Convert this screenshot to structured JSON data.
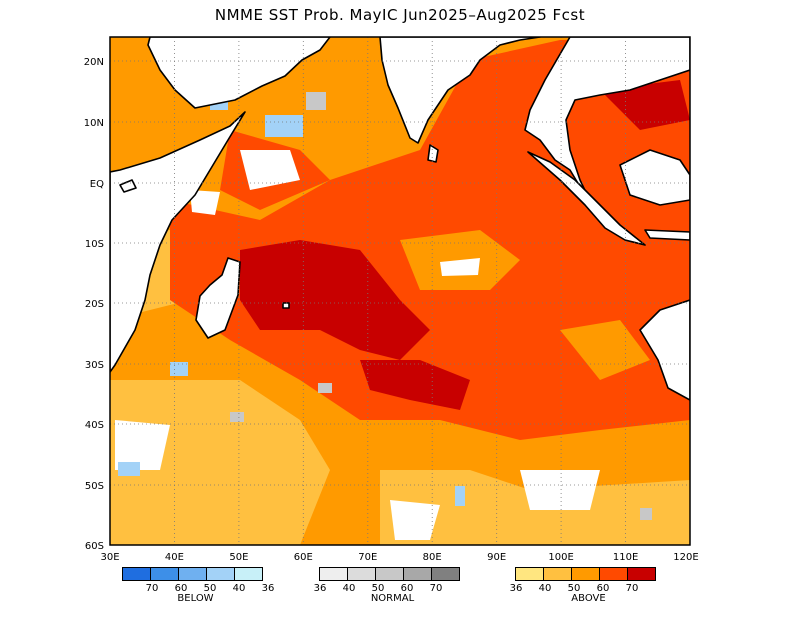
{
  "title": "NMME SST Prob. MayIC   Jun2025–Aug2025 Fcst",
  "axes": {
    "x_ticks": [
      "30E",
      "40E",
      "50E",
      "60E",
      "70E",
      "80E",
      "90E",
      "100E",
      "110E",
      "120E"
    ],
    "y_ticks": [
      "20N",
      "10N",
      "EQ",
      "10S",
      "20S",
      "30S",
      "40S",
      "50S",
      "60S"
    ],
    "xlim_deg_e": [
      30,
      120
    ],
    "ylim_deg": [
      -60,
      24
    ],
    "grid": true
  },
  "legends": [
    {
      "name": "BELOW",
      "colors": [
        "#1f6ee0",
        "#3d8fe8",
        "#6fb0f0",
        "#a3d2f7",
        "#c8f0f8"
      ],
      "ticks": [
        "70",
        "60",
        "50",
        "40",
        "36"
      ]
    },
    {
      "name": "NORMAL",
      "colors": [
        "#eeeeee",
        "#dcdcdc",
        "#c8c8c8",
        "#a8a8a8",
        "#808080"
      ],
      "ticks": [
        "36",
        "40",
        "50",
        "60",
        "70"
      ]
    },
    {
      "name": "ABOVE",
      "colors": [
        "#ffe680",
        "#ffc040",
        "#ff9a00",
        "#ff4a00",
        "#c80000"
      ],
      "ticks": [
        "36",
        "40",
        "50",
        "60",
        "70"
      ]
    }
  ],
  "colors": {
    "land": "#ffffff",
    "coast": "#000000",
    "frame": "#000000"
  }
}
